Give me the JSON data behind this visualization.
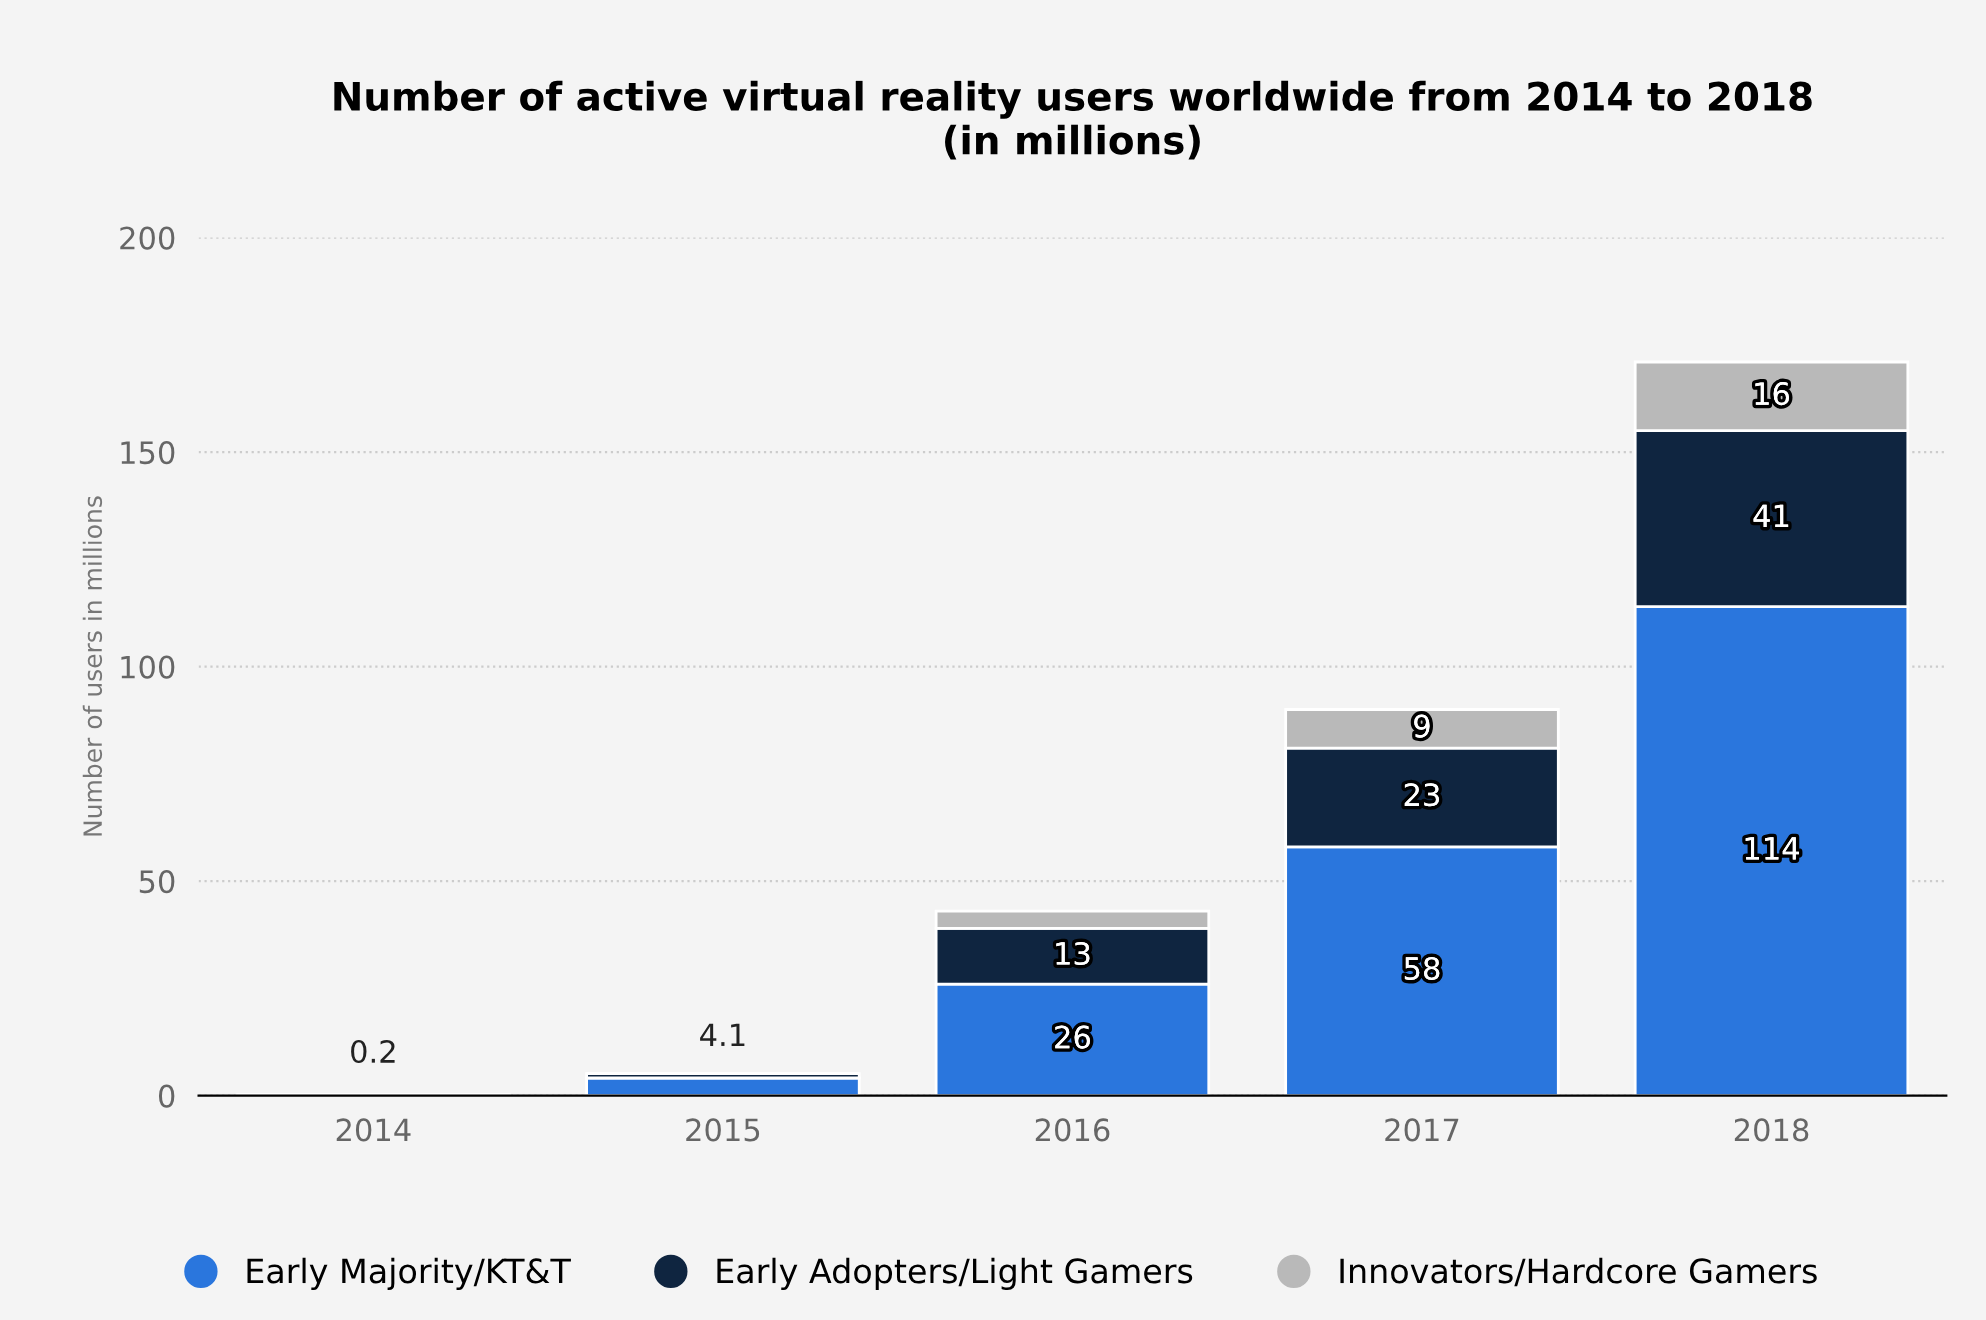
{
  "chart_data": {
    "type": "bar",
    "stacked": true,
    "title": "Number of active virtual reality users worldwide from 2014 to 2018\n(in millions)",
    "ylabel": "Number of users in millions",
    "categories": [
      "2014",
      "2015",
      "2016",
      "2017",
      "2018"
    ],
    "series": [
      {
        "name": "Early Majority/KT&T",
        "color": "#2a76dd",
        "values": [
          0.2,
          4.1,
          26,
          58,
          114
        ],
        "value_labels": [
          "0.2",
          "4.1",
          "26",
          "58",
          "114"
        ]
      },
      {
        "name": "Early Adopters/Light Gamers",
        "color": "#0f2540",
        "values": [
          null,
          1,
          13,
          23,
          41
        ],
        "value_labels": [
          null,
          null,
          "13",
          "23",
          "41"
        ]
      },
      {
        "name": "Innovators/Hardcore Gamers",
        "color": "#b9b9b9",
        "values": [
          null,
          null,
          4,
          9,
          16
        ],
        "value_labels": [
          null,
          null,
          null,
          "9",
          "16"
        ]
      }
    ],
    "ylim": [
      0,
      200
    ],
    "yticks": [
      0,
      50,
      100,
      150,
      200
    ],
    "grid": "y",
    "legend": "bottom",
    "marker": "circle"
  }
}
